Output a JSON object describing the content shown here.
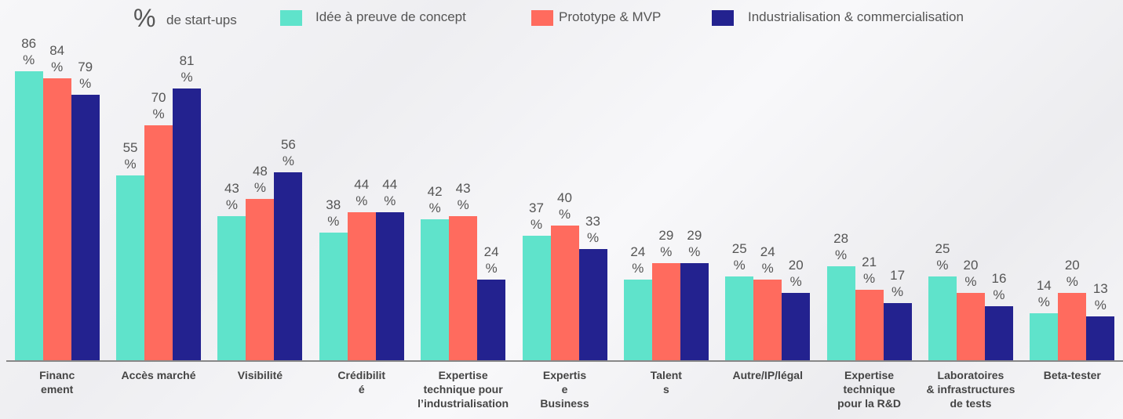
{
  "chart_data": {
    "type": "bar",
    "unit": "%",
    "legend_title": "de start-ups",
    "legend": "top",
    "categories": [
      "Financ\nement",
      "Accès marché",
      "Visibilité",
      "Crédibilit\né",
      "Expertise\ntechnique pour\nl’industrialisation",
      "Expertis\ne\nBusiness",
      "Talent\ns",
      "Autre/IP/légal",
      "Expertise\ntechnique\npour la R&D",
      "Laboratoires\n& infrastructures\nde tests",
      "Beta-tester"
    ],
    "ylim": [
      0,
      100
    ],
    "series": [
      {
        "name": "Idée à preuve de concept",
        "color": "#5fe3cb",
        "values": [
          86,
          55,
          43,
          38,
          42,
          37,
          24,
          25,
          28,
          25,
          14
        ],
        "value_labels": [
          "86\n%",
          "55\n%",
          "43\n%",
          "38\n%",
          "42\n%",
          "37\n%",
          "24\n%",
          "25\n%",
          "28\n%",
          "25\n%",
          "14\n%"
        ]
      },
      {
        "name": "Prototype & MVP",
        "color": "#ff6b5e",
        "values": [
          84,
          70,
          48,
          44,
          43,
          40,
          29,
          24,
          21,
          20,
          20
        ],
        "value_labels": [
          "84\n%",
          "70\n%",
          "48\n%",
          "44\n%",
          "43\n%",
          "40\n%",
          "29\n%",
          "24\n%",
          "21\n%",
          "20\n%",
          "20\n%"
        ]
      },
      {
        "name": "Industrialisation & commercialisation",
        "color": "#23228f",
        "values": [
          79,
          81,
          56,
          44,
          24,
          33,
          29,
          20,
          17,
          16,
          13
        ],
        "value_labels": [
          "79\n%",
          "81\n%",
          "56\n%",
          "44\n%",
          "24\n%",
          "33\n%",
          "29\n%",
          "20\n%",
          "17\n%",
          "16\n%",
          "13\n%"
        ]
      }
    ]
  }
}
